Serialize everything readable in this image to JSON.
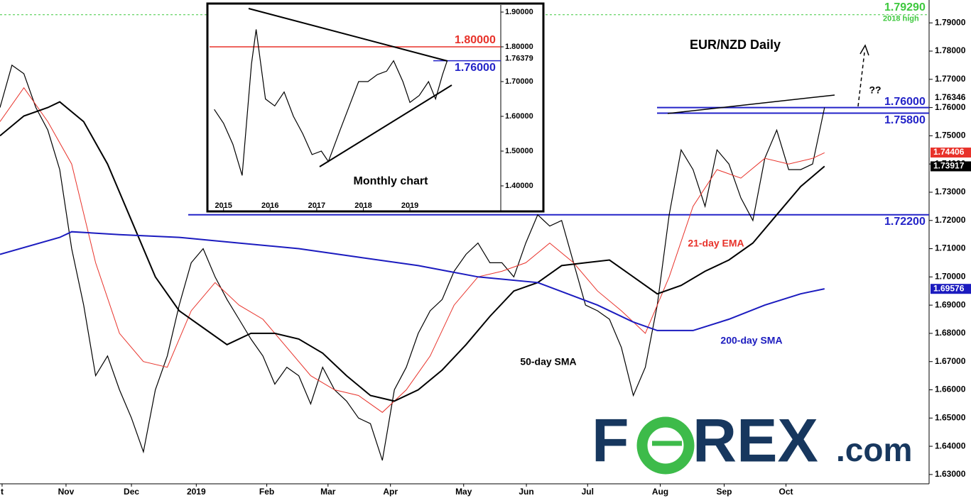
{
  "chart_data": [
    {
      "type": "line",
      "title": "EUR/NZD Daily",
      "series": [
        {
          "color": "#000000",
          "x": [
            0,
            4,
            8,
            12,
            16,
            20,
            24,
            28,
            32,
            36,
            40,
            44,
            48,
            52,
            56,
            60,
            64,
            68,
            72,
            76,
            80,
            84,
            88,
            92,
            96,
            100,
            104,
            108,
            112,
            116,
            120,
            124,
            128,
            132,
            136,
            140,
            144,
            148,
            152,
            156,
            160,
            164,
            168,
            172,
            176,
            180,
            184,
            188,
            192,
            196,
            200,
            204,
            208,
            212,
            216,
            220,
            224,
            228,
            232,
            236,
            240,
            244,
            248,
            252,
            256,
            260,
            264,
            268,
            272,
            276
          ],
          "values": [
            1.76,
            1.775,
            1.772,
            1.76,
            1.752,
            1.738,
            1.71,
            1.69,
            1.665,
            1.672,
            1.66,
            1.65,
            1.638,
            1.66,
            1.672,
            1.69,
            1.705,
            1.71,
            1.7,
            1.692,
            1.685,
            1.678,
            1.672,
            1.662,
            1.668,
            1.665,
            1.655,
            1.668,
            1.66,
            1.656,
            1.65,
            1.648,
            1.635,
            1.66,
            1.668,
            1.68,
            1.688,
            1.692,
            1.702,
            1.708,
            1.712,
            1.705,
            1.705,
            1.7,
            1.712,
            1.722,
            1.718,
            1.72,
            1.705,
            1.69,
            1.688,
            1.685,
            1.675,
            1.658,
            1.668,
            1.69,
            1.722,
            1.745,
            1.738,
            1.725,
            1.745,
            1.74,
            1.728,
            1.72,
            1.742,
            1.752,
            1.738,
            1.738,
            1.74,
            1.76
          ]
        },
        {
          "name": "21-day EMA",
          "color": "#e8322a",
          "x": [
            0,
            8,
            16,
            24,
            32,
            40,
            48,
            56,
            64,
            72,
            80,
            88,
            96,
            104,
            112,
            120,
            128,
            136,
            144,
            152,
            160,
            168,
            176,
            184,
            192,
            200,
            208,
            216,
            224,
            232,
            240,
            248,
            256,
            264,
            272,
            276
          ],
          "values": [
            1.755,
            1.767,
            1.755,
            1.74,
            1.705,
            1.68,
            1.67,
            1.668,
            1.688,
            1.698,
            1.69,
            1.685,
            1.675,
            1.665,
            1.66,
            1.658,
            1.652,
            1.66,
            1.672,
            1.69,
            1.7,
            1.702,
            1.705,
            1.712,
            1.705,
            1.695,
            1.688,
            1.68,
            1.7,
            1.725,
            1.738,
            1.735,
            1.742,
            1.74,
            1.742,
            1.744
          ]
        },
        {
          "name": "50-day SMA",
          "color": "#000000",
          "x": [
            0,
            8,
            16,
            20,
            28,
            36,
            44,
            52,
            60,
            68,
            76,
            84,
            92,
            100,
            108,
            116,
            124,
            132,
            140,
            148,
            156,
            164,
            172,
            180,
            188,
            196,
            204,
            212,
            220,
            228,
            236,
            244,
            252,
            260,
            268,
            276
          ],
          "values": [
            1.75,
            1.757,
            1.76,
            1.762,
            1.755,
            1.74,
            1.72,
            1.7,
            1.688,
            1.682,
            1.676,
            1.68,
            1.68,
            1.678,
            1.673,
            1.665,
            1.658,
            1.656,
            1.66,
            1.667,
            1.676,
            1.686,
            1.695,
            1.698,
            1.704,
            1.705,
            1.706,
            1.7,
            1.694,
            1.697,
            1.702,
            1.706,
            1.712,
            1.722,
            1.732,
            1.7392
          ]
        },
        {
          "name": "200-day SMA",
          "color": "#1b1bbf",
          "x": [
            0,
            20,
            24,
            40,
            60,
            80,
            100,
            120,
            140,
            160,
            180,
            200,
            212,
            220,
            232,
            244,
            256,
            268,
            276
          ],
          "values": [
            1.708,
            1.714,
            1.716,
            1.715,
            1.714,
            1.712,
            1.71,
            1.707,
            1.704,
            1.7,
            1.698,
            1.69,
            1.684,
            1.681,
            1.681,
            1.685,
            1.69,
            1.694,
            1.6958
          ]
        }
      ],
      "xlim": [
        0,
        311
      ],
      "xticks": [
        {
          "value": 0.7,
          "label": "t"
        },
        {
          "value": 22.1,
          "label": "Nov"
        },
        {
          "value": 44,
          "label": "Dec"
        },
        {
          "value": 65.7,
          "label": "2019"
        },
        {
          "value": 89.3,
          "label": "Feb"
        },
        {
          "value": 109.8,
          "label": "Mar"
        },
        {
          "value": 130.7,
          "label": "Apr"
        },
        {
          "value": 155.2,
          "label": "May"
        },
        {
          "value": 176.2,
          "label": "Jun"
        },
        {
          "value": 196.7,
          "label": "Jul"
        },
        {
          "value": 221,
          "label": "Aug"
        },
        {
          "value": 242.4,
          "label": "Sep"
        },
        {
          "value": 263.1,
          "label": "Oct"
        }
      ],
      "ylim": [
        1.6267,
        1.7981
      ],
      "yticks": [
        {
          "value": 1.63,
          "label": "1.63000"
        },
        {
          "value": 1.64,
          "label": "1.64000"
        },
        {
          "value": 1.65,
          "label": "1.65000"
        },
        {
          "value": 1.66,
          "label": "1.66000"
        },
        {
          "value": 1.67,
          "label": "1.67000"
        },
        {
          "value": 1.68,
          "label": "1.68000"
        },
        {
          "value": 1.69,
          "label": "1.69000"
        },
        {
          "value": 1.7,
          "label": "1.70000"
        },
        {
          "value": 1.71,
          "label": "1.71000"
        },
        {
          "value": 1.72,
          "label": "1.72000"
        },
        {
          "value": 1.73,
          "label": "1.73000"
        },
        {
          "value": 1.74,
          "label": "1.74000"
        },
        {
          "value": 1.75,
          "label": "1.75000"
        },
        {
          "value": 1.76,
          "label": "1.76000"
        },
        {
          "value": 1.77,
          "label": "1.77000"
        },
        {
          "value": 1.78,
          "label": "1.78000"
        },
        {
          "value": 1.79,
          "label": "1.79000"
        }
      ],
      "levels": [
        {
          "value": 1.76,
          "label": "1.76000",
          "color": "#2323c8"
        },
        {
          "value": 1.758,
          "label": "1.75800",
          "color": "#2323c8"
        },
        {
          "value": 1.722,
          "label": "1.72200",
          "color": "#2323c8"
        },
        {
          "value": 1.7929,
          "label": "1.79290",
          "color": "#3ec83e",
          "note": "2018 high"
        }
      ],
      "markers": [
        {
          "value": 1.76346,
          "label": "1.76346",
          "color": "#000000"
        },
        {
          "value": 1.74406,
          "label": "1.74406",
          "color": "#e8322a"
        },
        {
          "value": 1.73917,
          "label": "1.73917",
          "color": "#000000"
        },
        {
          "value": 1.69576,
          "label": "1.69576",
          "color": "#1b1bbf"
        }
      ],
      "annotation": "??"
    },
    {
      "type": "line",
      "title": "Monthly chart",
      "color": "#000000",
      "x": [
        2014.8,
        2015.0,
        2015.2,
        2015.4,
        2015.6,
        2015.7,
        2015.9,
        2016.1,
        2016.3,
        2016.5,
        2016.7,
        2016.9,
        2017.1,
        2017.25,
        2017.5,
        2017.7,
        2017.9,
        2018.1,
        2018.3,
        2018.5,
        2018.65,
        2018.85,
        2019.0,
        2019.2,
        2019.4,
        2019.55,
        2019.7,
        2019.8
      ],
      "values": [
        1.62,
        1.58,
        1.52,
        1.43,
        1.75,
        1.85,
        1.65,
        1.63,
        1.67,
        1.6,
        1.55,
        1.49,
        1.5,
        1.47,
        1.56,
        1.63,
        1.7,
        1.7,
        1.72,
        1.73,
        1.76,
        1.7,
        1.64,
        1.66,
        1.7,
        1.65,
        1.72,
        1.76
      ],
      "xlim": [
        2014.7,
        2020.95
      ],
      "xticks": [
        2015,
        2016,
        2017,
        2018,
        2019
      ],
      "ylim": [
        1.3592,
        1.9184
      ],
      "yticks": [
        {
          "value": 1.4,
          "label": "1.40000"
        },
        {
          "value": 1.5,
          "label": "1.50000"
        },
        {
          "value": 1.6,
          "label": "1.60000"
        },
        {
          "value": 1.7,
          "label": "1.70000"
        },
        {
          "value": 1.8,
          "label": "1.80000"
        },
        {
          "value": 1.9,
          "label": "1.90000"
        }
      ],
      "levels": [
        {
          "value": 1.8,
          "label": "1.80000",
          "color": "#e8322a"
        },
        {
          "value": 1.76,
          "label": "1.76000",
          "color": "#2323c8"
        }
      ],
      "markers": [
        {
          "value": 1.76379,
          "label": "1.76379",
          "color": "#000000"
        }
      ]
    }
  ],
  "logo": {
    "start": "F",
    "end": "REX",
    "suffix": ".com"
  }
}
